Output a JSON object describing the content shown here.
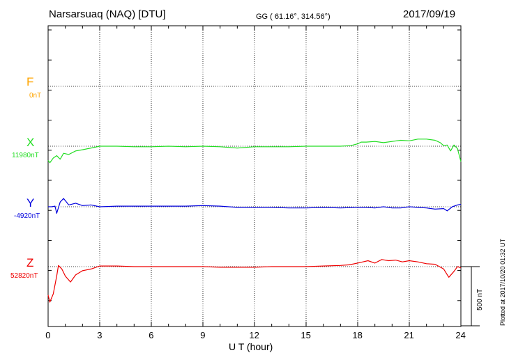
{
  "header": {
    "station": "Narsarsuaq (NAQ)  [DTU]",
    "coords": "GG ( 61.16°, 314.56°)",
    "date": "2017/09/19"
  },
  "footer": {
    "plotted": "Plotted at 2017/10/20 01:32 UT",
    "scale": "500 nT"
  },
  "channels": [
    {
      "name": "F",
      "base": "0nT",
      "color": "#ffa500"
    },
    {
      "name": "X",
      "base": "11980nT",
      "color": "#22dd22"
    },
    {
      "name": "Y",
      "base": "-4920nT",
      "color": "#0000dd"
    },
    {
      "name": "Z",
      "base": "52820nT",
      "color": "#ee0000"
    }
  ],
  "chart_data": {
    "type": "line",
    "title": "Narsarsuaq (NAQ)  [DTU]",
    "subtitle": "GG ( 61.16°, 314.56°)",
    "date": "2017/09/19",
    "xlabel": "U T (hour)",
    "xlim": [
      0,
      24
    ],
    "x_ticks": [
      "0",
      "3",
      "6",
      "9",
      "12",
      "15",
      "18",
      "21",
      "24"
    ],
    "y_unit": "nT",
    "scale_bar_nT": 500,
    "grid": true,
    "series": [
      {
        "name": "F",
        "baseline": "0nT",
        "color": "#ffa500",
        "x": [],
        "y": []
      },
      {
        "name": "X",
        "baseline": "11980nT",
        "color": "#22dd22",
        "x": [
          0,
          0.1,
          0.3,
          0.5,
          0.7,
          0.9,
          1.2,
          1.6,
          2.0,
          2.5,
          3.0,
          4.0,
          5.0,
          6.0,
          7.0,
          8.0,
          9.0,
          10.0,
          11.0,
          12.0,
          13.0,
          14.0,
          15.0,
          16.0,
          17.0,
          17.6,
          18.0,
          18.2,
          18.5,
          19.0,
          19.5,
          20.0,
          20.5,
          21.0,
          21.5,
          22.0,
          22.5,
          22.8,
          23.0,
          23.2,
          23.4,
          23.6,
          23.8,
          24.0
        ],
        "y": [
          -120,
          -140,
          -100,
          -80,
          -110,
          -60,
          -70,
          -40,
          -30,
          -15,
          0,
          0,
          -5,
          -5,
          0,
          -5,
          0,
          -5,
          -15,
          -5,
          -5,
          -5,
          0,
          0,
          0,
          5,
          20,
          35,
          35,
          40,
          30,
          40,
          50,
          45,
          60,
          60,
          50,
          30,
          5,
          10,
          -40,
          10,
          -20,
          -130
        ]
      },
      {
        "name": "Y",
        "baseline": "-4920nT",
        "color": "#0000dd",
        "x": [
          0,
          0.2,
          0.4,
          0.5,
          0.7,
          0.9,
          1.2,
          1.6,
          2.0,
          2.5,
          3.0,
          4.0,
          5.0,
          6.0,
          7.0,
          8.0,
          9.0,
          10.0,
          11.0,
          12.0,
          13.0,
          14.0,
          15.0,
          16.0,
          17.0,
          18.0,
          18.5,
          19.0,
          19.5,
          20.0,
          20.5,
          21.0,
          21.5,
          22.0,
          22.5,
          23.0,
          23.2,
          23.5,
          23.8,
          24.0
        ],
        "y": [
          0,
          0,
          5,
          -55,
          40,
          70,
          15,
          30,
          10,
          15,
          0,
          5,
          5,
          5,
          5,
          5,
          10,
          5,
          -5,
          -5,
          -5,
          -10,
          -10,
          -5,
          -10,
          -5,
          -5,
          -10,
          0,
          -10,
          -10,
          0,
          -5,
          -10,
          -20,
          -15,
          -35,
          0,
          15,
          20
        ]
      },
      {
        "name": "Z",
        "baseline": "52820nT",
        "color": "#ee0000",
        "x": [
          0,
          0.1,
          0.3,
          0.5,
          0.6,
          0.8,
          1.0,
          1.3,
          1.6,
          2.0,
          2.5,
          3.0,
          4.0,
          5.0,
          6.0,
          7.0,
          8.0,
          9.0,
          10.0,
          11.0,
          12.0,
          13.0,
          14.0,
          15.0,
          16.0,
          17.0,
          17.5,
          18.0,
          18.3,
          18.6,
          19.0,
          19.4,
          19.8,
          20.2,
          20.6,
          21.0,
          21.5,
          22.0,
          22.5,
          23.0,
          23.3,
          23.6,
          23.8,
          24.0
        ],
        "y": [
          -240,
          -300,
          -230,
          -80,
          10,
          -20,
          -80,
          -130,
          -70,
          -35,
          -20,
          5,
          5,
          0,
          0,
          0,
          0,
          0,
          -5,
          -5,
          -5,
          0,
          0,
          0,
          5,
          10,
          15,
          30,
          40,
          50,
          30,
          60,
          50,
          55,
          40,
          50,
          40,
          25,
          20,
          -20,
          -90,
          -40,
          0,
          -10
        ]
      }
    ]
  }
}
